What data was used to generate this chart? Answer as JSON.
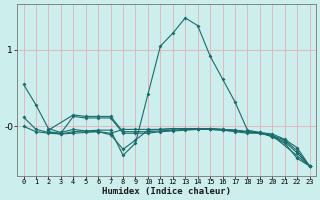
{
  "xlabel": "Humidex (Indice chaleur)",
  "background_color": "#cceeed",
  "grid_color": "#e0b0b8",
  "line_color": "#1a6b6b",
  "xlim": [
    -0.5,
    23.5
  ],
  "ylim": [
    -0.65,
    1.6
  ],
  "ytick_vals": [
    0.0,
    1.0
  ],
  "ytick_labels": [
    "-0",
    "1"
  ],
  "lines": [
    {
      "x": [
        0,
        1,
        2,
        3,
        4,
        5,
        6,
        7,
        8,
        9,
        10,
        11,
        12,
        13,
        14,
        15,
        16,
        17,
        18,
        19,
        20,
        21,
        22,
        23
      ],
      "y": [
        0.55,
        0.28,
        -0.03,
        -0.08,
        -0.04,
        -0.06,
        -0.05,
        -0.05,
        -0.38,
        -0.22,
        0.42,
        1.05,
        1.22,
        1.42,
        1.32,
        0.92,
        0.62,
        0.32,
        -0.05,
        -0.08,
        -0.14,
        -0.22,
        -0.42,
        -0.52
      ]
    },
    {
      "x": [
        0,
        1,
        2,
        3,
        4,
        5,
        6,
        7,
        8,
        9,
        10,
        11,
        12,
        13,
        14,
        15,
        16,
        17,
        18,
        19,
        20,
        21,
        22,
        23
      ],
      "y": [
        0.12,
        -0.04,
        -0.08,
        -0.1,
        -0.07,
        -0.06,
        -0.07,
        -0.09,
        -0.04,
        -0.04,
        -0.04,
        -0.04,
        -0.03,
        -0.03,
        -0.03,
        -0.03,
        -0.04,
        -0.05,
        -0.07,
        -0.09,
        -0.13,
        -0.2,
        -0.35,
        -0.52
      ]
    },
    {
      "x": [
        0,
        1,
        2,
        3,
        4,
        5,
        6,
        7,
        8,
        9,
        10,
        11,
        12,
        13,
        14,
        15,
        16,
        17,
        18,
        19,
        20,
        21,
        22,
        23
      ],
      "y": [
        0.0,
        -0.07,
        -0.09,
        -0.1,
        -0.09,
        -0.08,
        -0.07,
        -0.11,
        -0.3,
        -0.18,
        -0.05,
        -0.04,
        -0.03,
        -0.03,
        -0.03,
        -0.03,
        -0.04,
        -0.05,
        -0.07,
        -0.09,
        -0.12,
        -0.18,
        -0.32,
        -0.52
      ]
    },
    {
      "x": [
        2,
        3,
        4,
        5,
        6,
        7,
        8,
        9,
        10,
        11,
        12,
        13,
        14,
        15,
        16,
        17,
        18,
        19,
        20,
        23
      ],
      "y": [
        -0.07,
        -0.09,
        0.13,
        0.11,
        0.11,
        0.11,
        -0.09,
        -0.09,
        -0.09,
        -0.07,
        -0.06,
        -0.05,
        -0.04,
        -0.04,
        -0.05,
        -0.07,
        -0.09,
        -0.09,
        -0.12,
        -0.52
      ]
    },
    {
      "x": [
        2,
        4,
        5,
        6,
        7,
        8,
        9,
        10,
        11,
        12,
        13,
        14,
        15,
        16,
        17,
        18,
        19,
        20,
        21,
        22,
        23
      ],
      "y": [
        -0.05,
        0.15,
        0.13,
        0.13,
        0.13,
        -0.07,
        -0.07,
        -0.07,
        -0.06,
        -0.05,
        -0.04,
        -0.04,
        -0.04,
        -0.05,
        -0.06,
        -0.07,
        -0.08,
        -0.1,
        -0.17,
        -0.28,
        -0.52
      ]
    }
  ]
}
